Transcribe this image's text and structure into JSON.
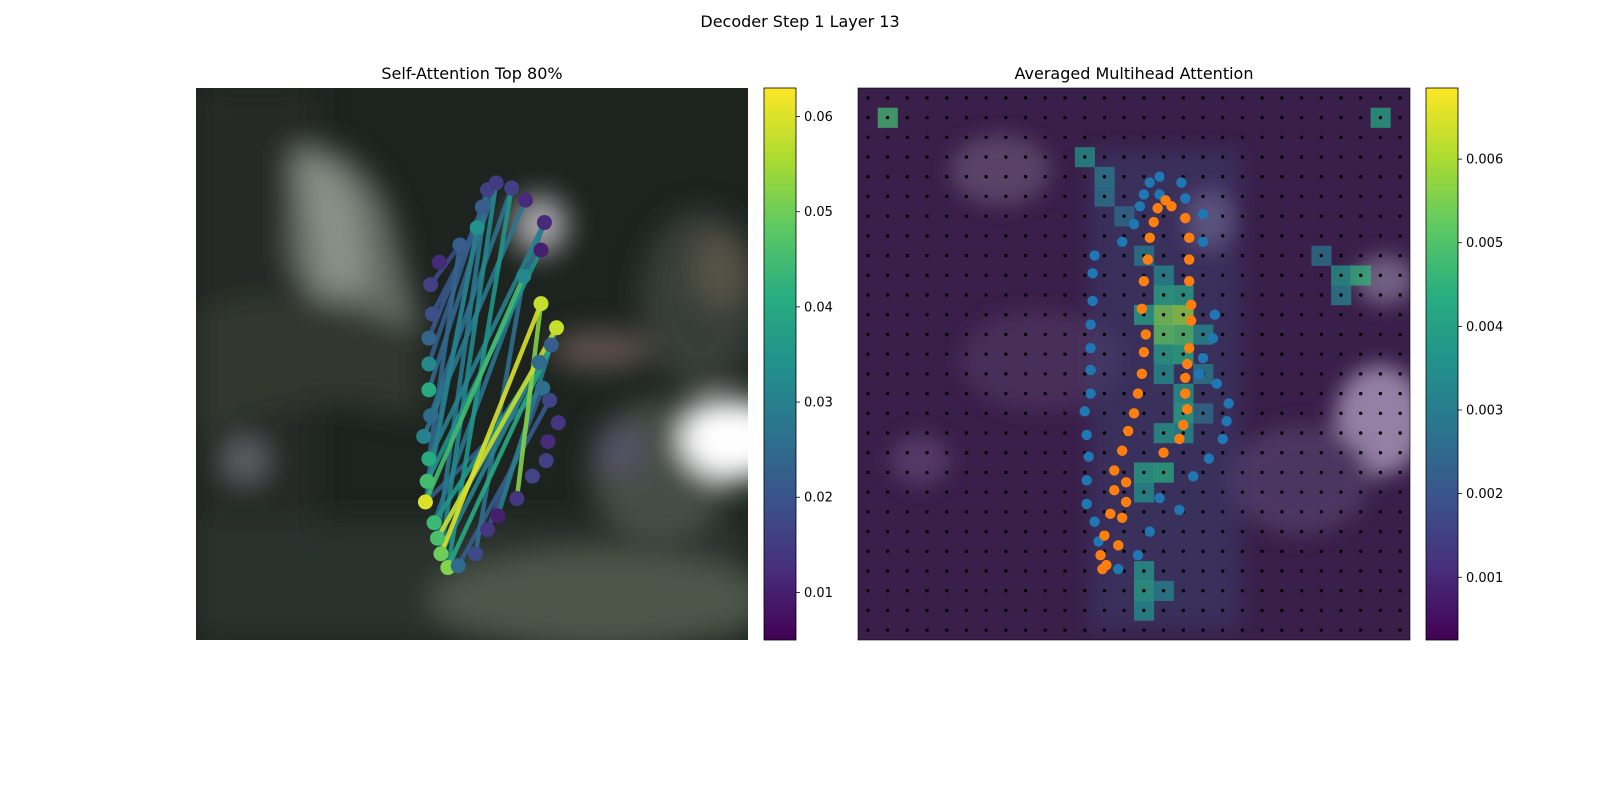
{
  "figure_title": "Decoder Step 1 Layer 13",
  "chart_data": [
    {
      "type": "scatter",
      "title": "Self-Attention Top 80%",
      "description_of_background": "blurred photo of a person",
      "xlim": [
        0,
        32
      ],
      "ylim": [
        32,
        0
      ],
      "grid": false,
      "points": [
        {
          "x": 14.6,
          "y": 4.2,
          "v": 0.052
        },
        {
          "x": 14.2,
          "y": 5.0,
          "v": 0.05
        },
        {
          "x": 14.0,
          "y": 5.9,
          "v": 0.046
        },
        {
          "x": 13.8,
          "y": 6.8,
          "v": 0.044
        },
        {
          "x": 13.3,
          "y": 8.0,
          "v": 0.06
        },
        {
          "x": 13.4,
          "y": 9.2,
          "v": 0.045
        },
        {
          "x": 13.5,
          "y": 10.5,
          "v": 0.04
        },
        {
          "x": 13.2,
          "y": 11.8,
          "v": 0.03
        },
        {
          "x": 13.6,
          "y": 13.0,
          "v": 0.025
        },
        {
          "x": 13.5,
          "y": 14.5,
          "v": 0.04
        },
        {
          "x": 13.5,
          "y": 16.0,
          "v": 0.032
        },
        {
          "x": 13.5,
          "y": 17.5,
          "v": 0.024
        },
        {
          "x": 13.7,
          "y": 18.9,
          "v": 0.019
        },
        {
          "x": 13.6,
          "y": 20.6,
          "v": 0.016
        },
        {
          "x": 14.1,
          "y": 21.9,
          "v": 0.012
        },
        {
          "x": 15.3,
          "y": 22.9,
          "v": 0.022
        },
        {
          "x": 16.3,
          "y": 23.9,
          "v": 0.034
        },
        {
          "x": 16.6,
          "y": 25.1,
          "v": 0.022
        },
        {
          "x": 16.9,
          "y": 26.1,
          "v": 0.016
        },
        {
          "x": 17.4,
          "y": 26.5,
          "v": 0.015
        },
        {
          "x": 18.3,
          "y": 26.2,
          "v": 0.016
        },
        {
          "x": 19.1,
          "y": 25.5,
          "v": 0.012
        },
        {
          "x": 20.2,
          "y": 24.2,
          "v": 0.012
        },
        {
          "x": 20.0,
          "y": 22.6,
          "v": 0.01
        },
        {
          "x": 19.0,
          "y": 21.1,
          "v": 0.032
        },
        {
          "x": 20.0,
          "y": 19.5,
          "v": 0.058
        },
        {
          "x": 20.9,
          "y": 18.1,
          "v": 0.058
        },
        {
          "x": 20.6,
          "y": 17.1,
          "v": 0.022
        },
        {
          "x": 19.9,
          "y": 16.1,
          "v": 0.025
        },
        {
          "x": 20.1,
          "y": 14.6,
          "v": 0.026
        },
        {
          "x": 20.5,
          "y": 13.9,
          "v": 0.017
        },
        {
          "x": 21.0,
          "y": 12.6,
          "v": 0.014
        },
        {
          "x": 20.4,
          "y": 11.5,
          "v": 0.012
        },
        {
          "x": 20.3,
          "y": 10.4,
          "v": 0.016
        },
        {
          "x": 19.5,
          "y": 9.5,
          "v": 0.017
        },
        {
          "x": 18.6,
          "y": 8.2,
          "v": 0.014
        },
        {
          "x": 17.5,
          "y": 7.2,
          "v": 0.01
        },
        {
          "x": 16.9,
          "y": 6.4,
          "v": 0.014
        },
        {
          "x": 16.2,
          "y": 5.0,
          "v": 0.018
        },
        {
          "x": 15.2,
          "y": 4.3,
          "v": 0.025
        }
      ],
      "connections": [
        {
          "from": 1,
          "to": 25,
          "v": 0.06
        },
        {
          "from": 2,
          "to": 26,
          "v": 0.058
        },
        {
          "from": 4,
          "to": 24,
          "v": 0.045
        },
        {
          "from": 0,
          "to": 27,
          "v": 0.04
        },
        {
          "from": 3,
          "to": 28,
          "v": 0.035
        },
        {
          "from": 5,
          "to": 23,
          "v": 0.034
        },
        {
          "from": 6,
          "to": 22,
          "v": 0.03
        },
        {
          "from": 7,
          "to": 21,
          "v": 0.028
        },
        {
          "from": 8,
          "to": 20,
          "v": 0.026
        },
        {
          "from": 9,
          "to": 19,
          "v": 0.024
        },
        {
          "from": 10,
          "to": 18,
          "v": 0.022
        },
        {
          "from": 11,
          "to": 17,
          "v": 0.021
        },
        {
          "from": 12,
          "to": 16,
          "v": 0.02
        },
        {
          "from": 13,
          "to": 15,
          "v": 0.018
        },
        {
          "from": 35,
          "to": 25,
          "v": 0.052
        },
        {
          "from": 36,
          "to": 26,
          "v": 0.03
        },
        {
          "from": 37,
          "to": 29,
          "v": 0.02
        },
        {
          "from": 38,
          "to": 24,
          "v": 0.026
        },
        {
          "from": 39,
          "to": 30,
          "v": 0.022
        },
        {
          "from": 0,
          "to": 20,
          "v": 0.035
        },
        {
          "from": 1,
          "to": 19,
          "v": 0.032
        },
        {
          "from": 2,
          "to": 18,
          "v": 0.028
        },
        {
          "from": 4,
          "to": 16,
          "v": 0.03
        },
        {
          "from": 5,
          "to": 17,
          "v": 0.025
        },
        {
          "from": 3,
          "to": 22,
          "v": 0.027
        },
        {
          "from": 6,
          "to": 15,
          "v": 0.024
        },
        {
          "from": 1,
          "to": 28,
          "v": 0.03
        },
        {
          "from": 2,
          "to": 27,
          "v": 0.025
        },
        {
          "from": 4,
          "to": 29,
          "v": 0.022
        }
      ],
      "colorbar": {
        "min": 0.005,
        "max": 0.063,
        "ticks": [
          0.01,
          0.02,
          0.03,
          0.04,
          0.05,
          0.06
        ],
        "tick_labels": [
          "0.01",
          "0.02",
          "0.03",
          "0.04",
          "0.05",
          "0.06"
        ],
        "colormap": "viridis"
      }
    },
    {
      "type": "heatmap",
      "title": "Averaged Multihead Attention",
      "xlim": [
        0,
        28
      ],
      "ylim": [
        28,
        0
      ],
      "grid_size": 28,
      "grid_dots": true,
      "highlights": [
        {
          "col": 1,
          "row": 1,
          "v": 0.0048
        },
        {
          "col": 26,
          "row": 1,
          "v": 0.0042
        },
        {
          "col": 24,
          "row": 9,
          "v": 0.0038
        },
        {
          "col": 25,
          "row": 9,
          "v": 0.0045
        },
        {
          "col": 24,
          "row": 10,
          "v": 0.0032
        },
        {
          "col": 23,
          "row": 8,
          "v": 0.0028
        },
        {
          "col": 15,
          "row": 11,
          "v": 0.0055
        },
        {
          "col": 16,
          "row": 11,
          "v": 0.0058
        },
        {
          "col": 15,
          "row": 12,
          "v": 0.0052
        },
        {
          "col": 16,
          "row": 12,
          "v": 0.005
        },
        {
          "col": 15,
          "row": 10,
          "v": 0.0042
        },
        {
          "col": 16,
          "row": 10,
          "v": 0.004
        },
        {
          "col": 14,
          "row": 11,
          "v": 0.004
        },
        {
          "col": 15,
          "row": 13,
          "v": 0.004
        },
        {
          "col": 16,
          "row": 13,
          "v": 0.0043
        },
        {
          "col": 15,
          "row": 14,
          "v": 0.0035
        },
        {
          "col": 16,
          "row": 15,
          "v": 0.0038
        },
        {
          "col": 16,
          "row": 16,
          "v": 0.0042
        },
        {
          "col": 15,
          "row": 17,
          "v": 0.0038
        },
        {
          "col": 16,
          "row": 17,
          "v": 0.0035
        },
        {
          "col": 14,
          "row": 19,
          "v": 0.004
        },
        {
          "col": 15,
          "row": 19,
          "v": 0.0043
        },
        {
          "col": 14,
          "row": 20,
          "v": 0.0036
        },
        {
          "col": 14,
          "row": 24,
          "v": 0.0038
        },
        {
          "col": 14,
          "row": 25,
          "v": 0.004
        },
        {
          "col": 14,
          "row": 26,
          "v": 0.0036
        },
        {
          "col": 15,
          "row": 25,
          "v": 0.0032
        },
        {
          "col": 11,
          "row": 3,
          "v": 0.0036
        },
        {
          "col": 12,
          "row": 4,
          "v": 0.003
        },
        {
          "col": 12,
          "row": 5,
          "v": 0.0028
        },
        {
          "col": 13,
          "row": 6,
          "v": 0.0026
        },
        {
          "col": 14,
          "row": 8,
          "v": 0.003
        },
        {
          "col": 15,
          "row": 9,
          "v": 0.0034
        },
        {
          "col": 17,
          "row": 12,
          "v": 0.0034
        },
        {
          "col": 17,
          "row": 14,
          "v": 0.003
        },
        {
          "col": 17,
          "row": 16,
          "v": 0.0026
        }
      ],
      "series": [
        {
          "color": "#1f77b4",
          "points": [
            {
              "x": 13.2,
              "y": 3.6
            },
            {
              "x": 14.2,
              "y": 4.3
            },
            {
              "x": 12.2,
              "y": 5.0
            },
            {
              "x": 14.8,
              "y": 5.5
            },
            {
              "x": 12.0,
              "y": 6.0
            },
            {
              "x": 11.6,
              "y": 6.9
            },
            {
              "x": 11.6,
              "y": 8.1
            },
            {
              "x": 16.3,
              "y": 6.6
            },
            {
              "x": 15.3,
              "y": 7.2
            },
            {
              "x": 17.0,
              "y": 8.3
            },
            {
              "x": 17.8,
              "y": 9.2
            },
            {
              "x": 11.7,
              "y": 9.3
            },
            {
              "x": 11.6,
              "y": 10.4
            },
            {
              "x": 18.5,
              "y": 10.2
            },
            {
              "x": 18.7,
              "y": 11.1
            },
            {
              "x": 11.5,
              "y": 11.6
            },
            {
              "x": 18.8,
              "y": 12.0
            },
            {
              "x": 11.8,
              "y": 12.5
            },
            {
              "x": 18.2,
              "y": 13.0
            },
            {
              "x": 17.3,
              "y": 13.5
            },
            {
              "x": 11.8,
              "y": 13.7
            },
            {
              "x": 17.5,
              "y": 14.3
            },
            {
              "x": 11.8,
              "y": 14.8
            },
            {
              "x": 18.0,
              "y": 15.3
            },
            {
              "x": 11.8,
              "y": 16.0
            },
            {
              "x": 18.1,
              "y": 16.5
            },
            {
              "x": 11.9,
              "y": 17.2
            },
            {
              "x": 11.9,
              "y": 18.6
            },
            {
              "x": 12.0,
              "y": 19.5
            },
            {
              "x": 13.4,
              "y": 20.2
            },
            {
              "x": 17.5,
              "y": 20.2
            },
            {
              "x": 14.0,
              "y": 21.1
            },
            {
              "x": 17.5,
              "y": 21.6
            },
            {
              "x": 14.3,
              "y": 22.0
            },
            {
              "x": 16.6,
              "y": 22.4
            },
            {
              "x": 15.3,
              "y": 22.6
            },
            {
              "x": 14.5,
              "y": 22.6
            },
            {
              "x": 14.8,
              "y": 23.2
            },
            {
              "x": 16.4,
              "y": 23.2
            },
            {
              "x": 15.3,
              "y": 23.5
            }
          ]
        },
        {
          "color": "#ff7f0e",
          "points": [
            {
              "x": 12.4,
              "y": 3.6
            },
            {
              "x": 12.6,
              "y": 3.8
            },
            {
              "x": 12.3,
              "y": 4.3
            },
            {
              "x": 13.2,
              "y": 4.8
            },
            {
              "x": 12.5,
              "y": 5.3
            },
            {
              "x": 13.4,
              "y": 6.2
            },
            {
              "x": 12.8,
              "y": 6.4
            },
            {
              "x": 13.6,
              "y": 7.0
            },
            {
              "x": 13.0,
              "y": 7.6
            },
            {
              "x": 13.6,
              "y": 8.0
            },
            {
              "x": 13.0,
              "y": 8.6
            },
            {
              "x": 13.4,
              "y": 9.6
            },
            {
              "x": 15.5,
              "y": 9.5
            },
            {
              "x": 16.3,
              "y": 10.2
            },
            {
              "x": 13.7,
              "y": 10.6
            },
            {
              "x": 16.5,
              "y": 10.9
            },
            {
              "x": 14.0,
              "y": 11.5
            },
            {
              "x": 16.7,
              "y": 11.7
            },
            {
              "x": 14.2,
              "y": 12.5
            },
            {
              "x": 16.6,
              "y": 12.5
            },
            {
              "x": 16.6,
              "y": 13.3
            },
            {
              "x": 14.4,
              "y": 13.5
            },
            {
              "x": 16.7,
              "y": 14.0
            },
            {
              "x": 14.5,
              "y": 14.6
            },
            {
              "x": 16.8,
              "y": 14.8
            },
            {
              "x": 14.6,
              "y": 15.5
            },
            {
              "x": 16.9,
              "y": 16.2
            },
            {
              "x": 14.4,
              "y": 16.8
            },
            {
              "x": 16.9,
              "y": 17.0
            },
            {
              "x": 14.5,
              "y": 18.2
            },
            {
              "x": 16.8,
              "y": 18.2
            },
            {
              "x": 14.7,
              "y": 19.3
            },
            {
              "x": 16.8,
              "y": 19.3
            },
            {
              "x": 14.8,
              "y": 20.4
            },
            {
              "x": 16.8,
              "y": 20.4
            },
            {
              "x": 15.0,
              "y": 21.2
            },
            {
              "x": 16.6,
              "y": 21.4
            },
            {
              "x": 15.2,
              "y": 21.9
            },
            {
              "x": 15.6,
              "y": 22.3
            },
            {
              "x": 15.9,
              "y": 22.0
            }
          ]
        }
      ],
      "colorbar": {
        "min": 0.00025,
        "max": 0.00685,
        "ticks": [
          0.001,
          0.002,
          0.003,
          0.004,
          0.005,
          0.006
        ],
        "tick_labels": [
          "0.001",
          "0.002",
          "0.003",
          "0.004",
          "0.005",
          "0.006"
        ],
        "colormap": "viridis"
      }
    }
  ]
}
